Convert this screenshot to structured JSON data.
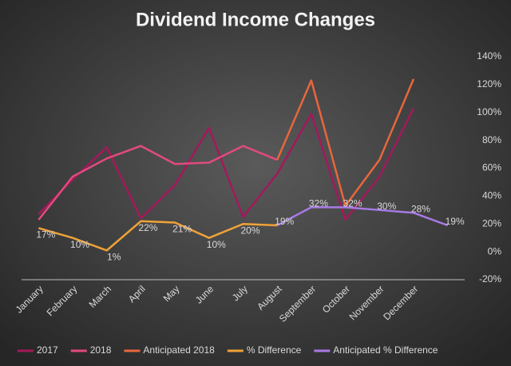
{
  "chart_data": {
    "type": "line",
    "title": "Dividend Income Changes",
    "categories": [
      "January",
      "February",
      "March",
      "April",
      "May",
      "June",
      "July",
      "August",
      "September",
      "October",
      "November",
      "December",
      null
    ],
    "series": [
      {
        "name": "2017",
        "color": "#a3195b",
        "values": [
          27,
          52,
          75,
          24,
          48,
          89,
          25,
          56,
          99,
          23,
          54,
          103,
          null
        ]
      },
      {
        "name": "2018",
        "color": "#e24a7e",
        "values": [
          23,
          54,
          67,
          76,
          63,
          64,
          76,
          66,
          null,
          null,
          null,
          null,
          null
        ]
      },
      {
        "name": "Anticipated 2018",
        "color": "#e8663c",
        "values": [
          null,
          null,
          null,
          null,
          null,
          null,
          null,
          66,
          123,
          33,
          66,
          124,
          null
        ]
      },
      {
        "name": "% Difference",
        "color": "#f0a238",
        "values": [
          17,
          10,
          1,
          22,
          21,
          10,
          20,
          19,
          null,
          null,
          null,
          null,
          null
        ],
        "value_labels": [
          "17%",
          "10%",
          "1%",
          "22%",
          "21%",
          "10%",
          "20%",
          null,
          null,
          null,
          null,
          null,
          null
        ]
      },
      {
        "name": "Anticipated % Difference",
        "color": "#a77ae6",
        "values": [
          null,
          null,
          null,
          null,
          null,
          null,
          null,
          19,
          32,
          32,
          30,
          28,
          19
        ],
        "value_labels": [
          null,
          null,
          null,
          null,
          null,
          null,
          null,
          "19%",
          "32%",
          "32%",
          "30%",
          "28%",
          "19%"
        ]
      }
    ],
    "ylim": [
      -20,
      140
    ],
    "yticks": [
      {
        "value": -20,
        "label": "-20%"
      },
      {
        "value": 0,
        "label": "0%"
      },
      {
        "value": 20,
        "label": "20%"
      },
      {
        "value": 40,
        "label": "40%"
      },
      {
        "value": 60,
        "label": "60%"
      },
      {
        "value": 80,
        "label": "80%"
      },
      {
        "value": 100,
        "label": "100%"
      },
      {
        "value": 120,
        "label": "120%"
      },
      {
        "value": 140,
        "label": "140%"
      }
    ],
    "legend": "bottom"
  }
}
